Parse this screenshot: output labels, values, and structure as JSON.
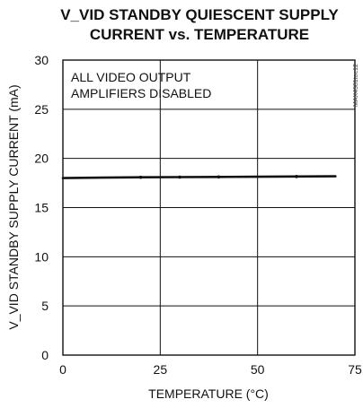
{
  "chart_data": {
    "type": "line",
    "title_lines": [
      "V_VID STANDBY QUIESCENT SUPPLY",
      "CURRENT vs. TEMPERATURE"
    ],
    "xlabel": "TEMPERATURE (°C)",
    "ylabel": "V_VID STANDBY SUPPLY CURRENT (mA)",
    "xlim": [
      0,
      75
    ],
    "ylim": [
      0,
      30
    ],
    "x_ticks": [
      0,
      25,
      50,
      75
    ],
    "y_ticks": [
      0,
      5,
      10,
      15,
      20,
      25,
      30
    ],
    "grid": true,
    "annotation_lines": [
      "ALL VIDEO OUTPUT",
      "AMPLIFIERS DISABLED"
    ],
    "figure_code": "MAX4381toc12",
    "series": [
      {
        "x": [
          0,
          10,
          20,
          30,
          40,
          50,
          60,
          70
        ],
        "y": [
          18.0,
          18.05,
          18.08,
          18.1,
          18.12,
          18.14,
          18.16,
          18.18
        ],
        "markers_x": [
          20,
          30,
          40,
          60
        ],
        "color": "#111111"
      }
    ]
  }
}
